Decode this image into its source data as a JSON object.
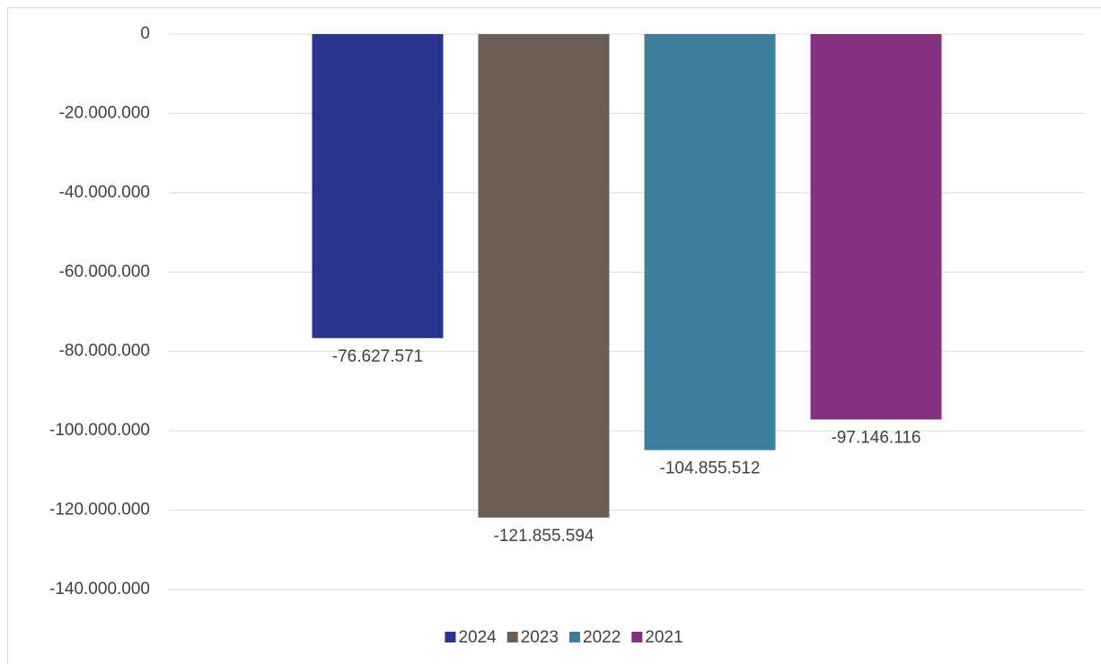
{
  "chart_data": {
    "type": "bar",
    "categories": [
      null
    ],
    "series": [
      {
        "name": "2024",
        "color": "#29348c",
        "values": [
          -76627571
        ],
        "value_labels": [
          "-76.627.571"
        ]
      },
      {
        "name": "2023",
        "color": "#6b5f55",
        "values": [
          -121855594
        ],
        "value_labels": [
          "-121.855.594"
        ]
      },
      {
        "name": "2022",
        "color": "#3e7d9c",
        "values": [
          -104855512
        ],
        "value_labels": [
          "-104.855.512"
        ]
      },
      {
        "name": "2021",
        "color": "#842f80",
        "values": [
          -97146116
        ],
        "value_labels": [
          "-97.146.116"
        ]
      }
    ],
    "ylim": [
      -140000000,
      0
    ],
    "yticks": [
      0,
      {
        "value": -20000000,
        "label": "-20.000.000"
      },
      {
        "value": -40000000,
        "label": "-40.000.000"
      },
      {
        "value": -60000000,
        "label": "-60.000.000"
      },
      {
        "value": -80000000,
        "label": "-80.000.000"
      },
      {
        "value": -100000000,
        "label": "-100.000.000"
      },
      {
        "value": -120000000,
        "label": "-120.000.000"
      },
      {
        "value": -140000000,
        "label": "-140.000.000"
      }
    ],
    "grid": true,
    "legend": "bottom"
  }
}
